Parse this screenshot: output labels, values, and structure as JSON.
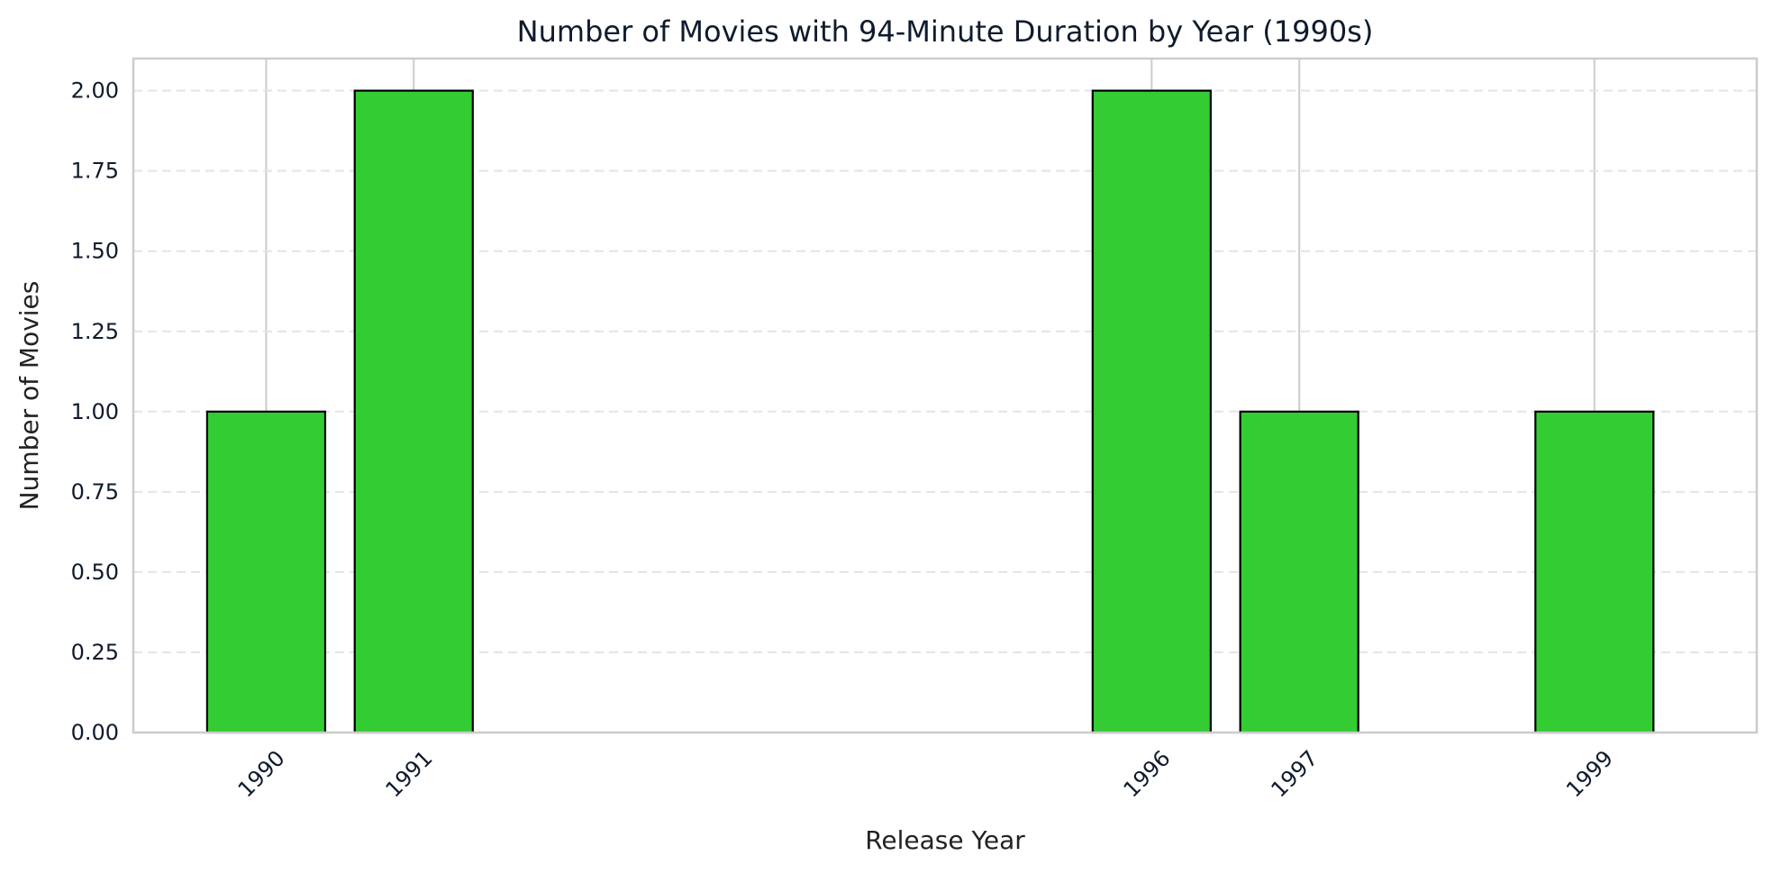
{
  "chart_data": {
    "type": "bar",
    "title": "Number of Movies with 94-Minute Duration by Year (1990s)",
    "xlabel": "Release Year",
    "ylabel": "Number of Movies",
    "x": [
      1990,
      1991,
      1996,
      1997,
      1999
    ],
    "categories": [
      "1990",
      "1991",
      "1996",
      "1997",
      "1999"
    ],
    "values": [
      1,
      2,
      2,
      1,
      1
    ],
    "xlim": [
      1989.1,
      2000.1
    ],
    "ylim": [
      0,
      2.1
    ],
    "yticks": [
      "0.00",
      "0.25",
      "0.50",
      "0.75",
      "1.00",
      "1.25",
      "1.50",
      "1.75",
      "2.00"
    ],
    "grid": "horizontal dashed, vertical at x ticks",
    "bar_color": "#33cc33",
    "bar_edge_color": "#000000"
  }
}
